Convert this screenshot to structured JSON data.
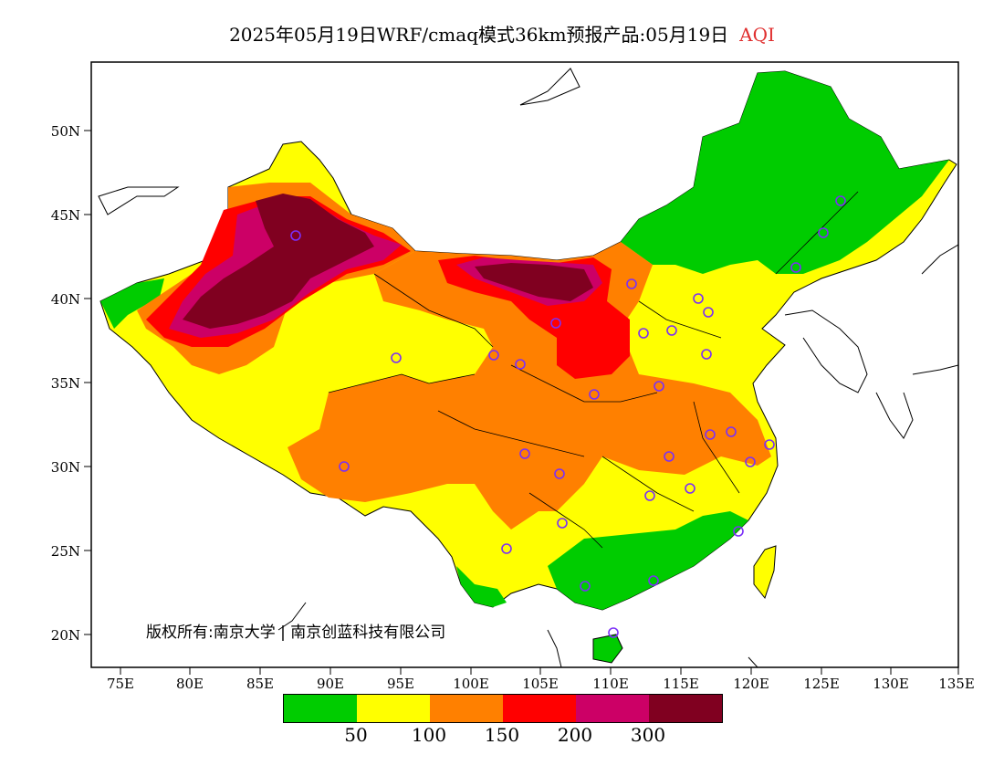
{
  "title": {
    "main": "2025年05月19日WRF/cmaq模式36km预报产品:05月19日",
    "variable": "AQI",
    "variable_color": "#e03030"
  },
  "axes": {
    "lat_labels": [
      "50N",
      "45N",
      "40N",
      "35N",
      "30N",
      "25N",
      "20N"
    ],
    "lon_labels": [
      "75E",
      "80E",
      "85E",
      "90E",
      "95E",
      "100E",
      "105E",
      "110E",
      "115E",
      "120E",
      "125E",
      "130E",
      "135E"
    ]
  },
  "copyright": "版权所有:南京大学 | 南京创蓝科技有限公司",
  "legend": {
    "colors": [
      "#00cc00",
      "#ffff00",
      "#ff8000",
      "#ff0000",
      "#cc0066",
      "#800020"
    ],
    "ticks": [
      "50",
      "100",
      "150",
      "200",
      "300"
    ]
  },
  "palette": {
    "good": "#00cc00",
    "moderate": "#ffff00",
    "usg": "#ff8000",
    "unhealthy": "#ff0000",
    "very_unhealthy": "#cc0066",
    "hazardous": "#800020",
    "marker": "#7b2ff7"
  }
}
